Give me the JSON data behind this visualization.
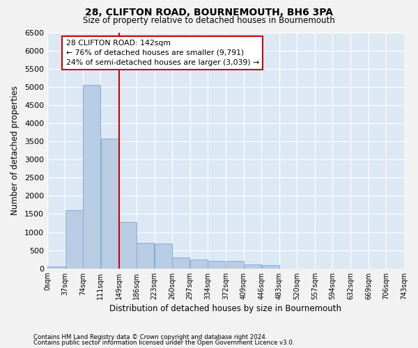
{
  "title": "28, CLIFTON ROAD, BOURNEMOUTH, BH6 3PA",
  "subtitle": "Size of property relative to detached houses in Bournemouth",
  "xlabel": "Distribution of detached houses by size in Bournemouth",
  "ylabel": "Number of detached properties",
  "footer_line1": "Contains HM Land Registry data © Crown copyright and database right 2024.",
  "footer_line2": "Contains public sector information licensed under the Open Government Licence v3.0.",
  "annotation_title": "28 CLIFTON ROAD: 142sqm",
  "annotation_line2": "← 76% of detached houses are smaller (9,791)",
  "annotation_line3": "24% of semi-detached houses are larger (3,039) →",
  "bins": [
    0,
    37,
    74,
    111,
    149,
    186,
    223,
    260,
    297,
    334,
    372,
    409,
    446,
    483,
    520,
    557,
    594,
    632,
    669,
    706,
    743
  ],
  "bin_labels": [
    "0sqm",
    "37sqm",
    "74sqm",
    "111sqm",
    "149sqm",
    "186sqm",
    "223sqm",
    "260sqm",
    "297sqm",
    "334sqm",
    "372sqm",
    "409sqm",
    "446sqm",
    "483sqm",
    "520sqm",
    "557sqm",
    "594sqm",
    "632sqm",
    "669sqm",
    "706sqm",
    "743sqm"
  ],
  "values": [
    55,
    1600,
    5050,
    3570,
    1280,
    700,
    680,
    310,
    250,
    200,
    200,
    100,
    90,
    0,
    0,
    0,
    0,
    0,
    0,
    0
  ],
  "bar_color": "#b8cce4",
  "bar_edge_color": "#7bafd4",
  "vline_color": "#cc0000",
  "vline_x": 149,
  "fig_bg_color": "#f2f2f2",
  "plot_bg_color": "#dde8f5",
  "grid_color": "#ffffff",
  "ylim_max": 6500,
  "yticks": [
    0,
    500,
    1000,
    1500,
    2000,
    2500,
    3000,
    3500,
    4000,
    4500,
    5000,
    5500,
    6000,
    6500
  ]
}
